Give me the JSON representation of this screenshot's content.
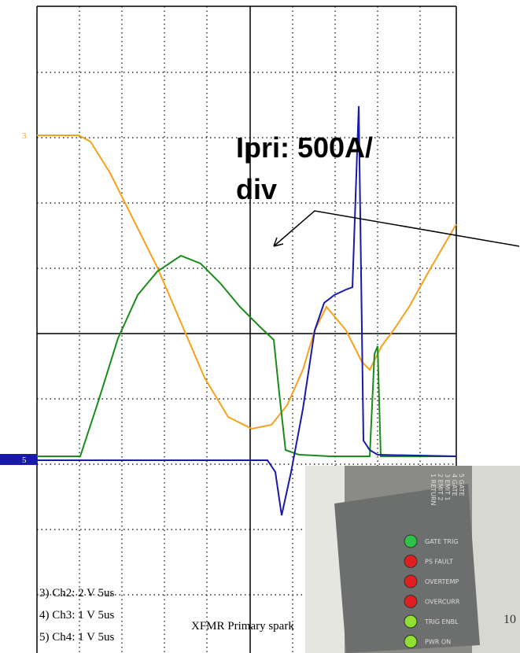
{
  "annotation": {
    "lines": [
      "Ipri: 500A/",
      "div"
    ]
  },
  "markers": [
    "3",
    "5"
  ],
  "channels": [
    "3) Ch2:  2 V  5us",
    "4) Ch3:  1 V  5us",
    "5) Ch4:  1 V  5us"
  ],
  "caption": "XFMR Primary spark",
  "panel": {
    "leds": [
      "GATE TRIG",
      "PS FAULT",
      "OVERTEMP",
      "OVERCURR",
      "TRIG ENBL",
      "PWR ON"
    ],
    "connector_labels": [
      "1 RETURN",
      "2 EMIT 2",
      "3 EMIT 1",
      "4 GATE",
      "5 GATE"
    ],
    "side_text": "10"
  }
}
